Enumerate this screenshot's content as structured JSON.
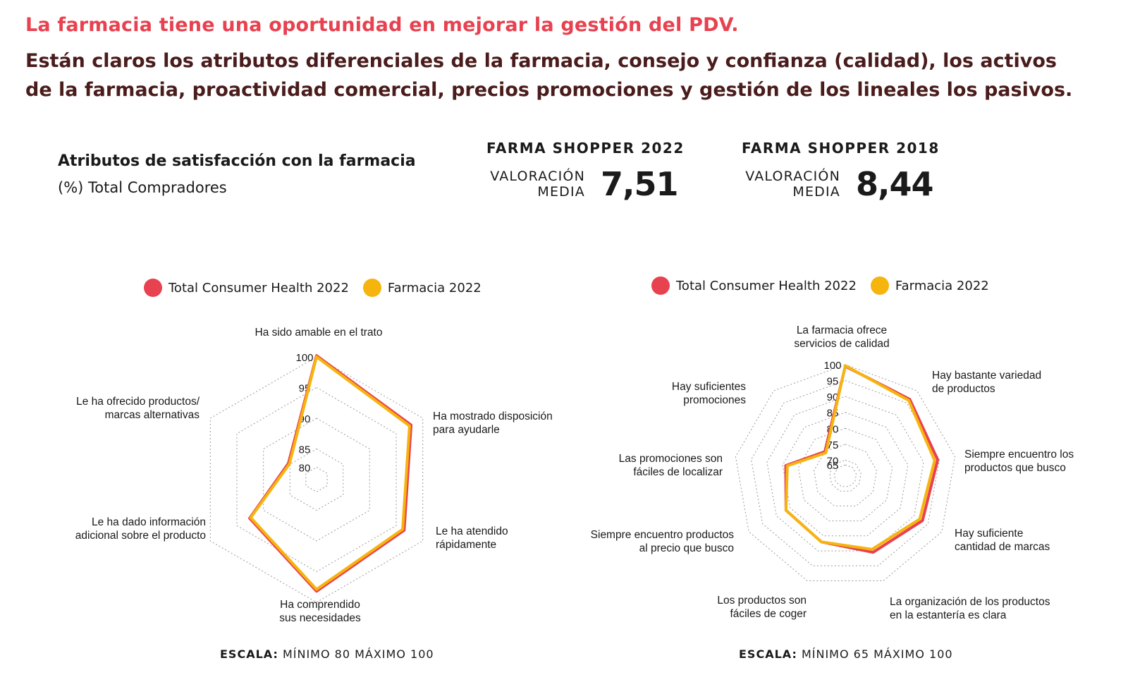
{
  "header": {
    "headline": "La farmacia tiene una oportunidad en mejorar la gestión del PDV.",
    "subheadline": "Están claros los atributos diferenciales de la farmacia, consejo y confianza (calidad), los activos de la farmacia, proactividad comercial, precios promociones y gestión de los lineales los pasivos."
  },
  "chart_header": {
    "title": "Atributos de satisfacción con la farmacia",
    "subtitle": "(%) Total Compradores"
  },
  "kpis": [
    {
      "title": "FARMA SHOPPER 2022",
      "label_line1": "VALORACIÓN",
      "label_line2": "MEDIA",
      "value": "7,51"
    },
    {
      "title": "FARMA SHOPPER 2018",
      "label_line1": "VALORACIÓN",
      "label_line2": "MEDIA",
      "value": "8,44"
    }
  ],
  "colors": {
    "red": "#e8414f",
    "yellow": "#f6b40e",
    "grid": "#9a9a9a"
  },
  "chart_data": [
    {
      "type": "radar",
      "categories": [
        "Ha sido amable en el trato",
        "Ha mostrado disposición para ayudarle",
        "Le ha atendido rápidamente",
        "Ha comprendido sus necesidades",
        "Le ha dado información adicional sobre el producto",
        "Le ha ofrecido productos/ marcas alternativas"
      ],
      "category_lines": [
        [
          "Ha sido amable en el trato"
        ],
        [
          "Ha mostrado disposición",
          "para ayudarle"
        ],
        [
          "Le ha atendido",
          "rápidamente"
        ],
        [
          "Ha comprendido",
          "sus necesidades"
        ],
        [
          "Le ha dado información",
          "adicional sobre el producto"
        ],
        [
          "Le ha ofrecido productos/",
          "marcas alternativas"
        ]
      ],
      "ticks": [
        80,
        85,
        90,
        95,
        100
      ],
      "range": [
        80,
        100
      ],
      "series": [
        {
          "name": "Total Consumer Health 2022",
          "color": "#e8414f",
          "values": [
            100.2,
            97.8,
            96.5,
            98.2,
            92.6,
            85.3
          ]
        },
        {
          "name": "Farmacia 2022",
          "color": "#f6b40e",
          "values": [
            100.0,
            97.5,
            96.2,
            97.9,
            92.4,
            85.1
          ]
        }
      ],
      "scale_label": "ESCALA:",
      "scale_text": "MÍNIMO 80 MÁXIMO 100"
    },
    {
      "type": "radar",
      "categories": [
        "La farmacia ofrece servicios de calidad",
        "Hay bastante variedad de productos",
        "Siempre encuentro los productos que busco",
        "Hay suficiente cantidad de marcas",
        "La organización de los productos en la estantería es clara",
        "Los productos son fáciles de coger",
        "Siempre encuentro productos al precio que busco",
        "Las promociones son fáciles de localizar",
        "Hay suficientes promociones"
      ],
      "category_lines": [
        [
          "La farmacia ofrece",
          "servicios de calidad"
        ],
        [
          "Hay bastante variedad",
          "de productos"
        ],
        [
          "Siempre encuentro los",
          "productos que busco"
        ],
        [
          "Hay suficiente",
          "cantidad de marcas"
        ],
        [
          "La organización de los productos",
          "en la estantería es clara"
        ],
        [
          "Los productos son",
          "fáciles de coger"
        ],
        [
          "Siempre encuentro productos",
          "al precio que busco"
        ],
        [
          "Las promociones son",
          "fáciles de localizar"
        ],
        [
          "Hay suficientes",
          "promociones"
        ]
      ],
      "ticks": [
        65,
        70,
        75,
        80,
        85,
        90,
        95,
        100
      ],
      "range": [
        65,
        100
      ],
      "series": [
        {
          "name": "Total Consumer Health 2022",
          "color": "#e8414f",
          "values": [
            99.5,
            96.5,
            94.5,
            93.0,
            90.5,
            87.0,
            86.5,
            84.0,
            75.0
          ]
        },
        {
          "name": "Farmacia 2022",
          "color": "#f6b40e",
          "values": [
            99.7,
            96.0,
            93.5,
            92.0,
            89.5,
            87.0,
            86.5,
            83.5,
            74.5
          ]
        }
      ],
      "scale_label": "ESCALA:",
      "scale_text": "MÍNIMO 65 MÁXIMO 100"
    }
  ]
}
